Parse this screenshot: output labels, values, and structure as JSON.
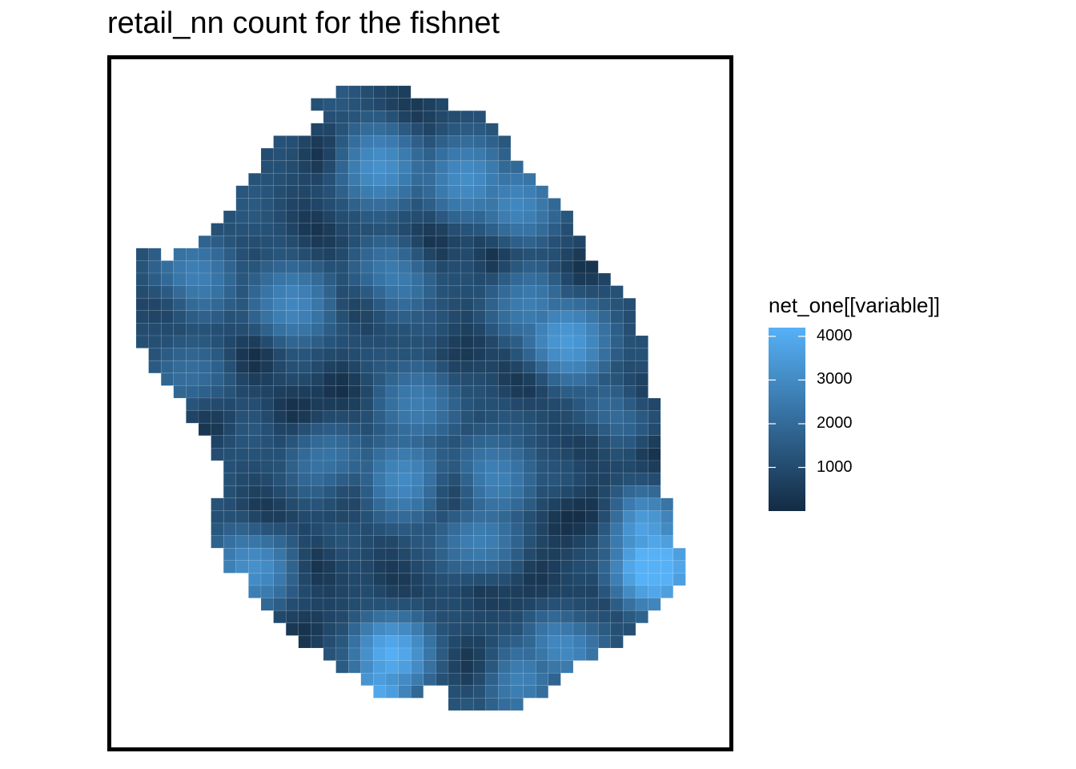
{
  "chart_data": {
    "type": "heatmap",
    "title": "retail_nn count for the fishnet",
    "legend_title": "net_one[[variable]]",
    "legend_breaks": [
      1000,
      2000,
      3000,
      4000
    ],
    "value_range": [
      0,
      4200
    ],
    "colors": {
      "low": "#132B43",
      "high": "#56B1F7",
      "frame": "#000000",
      "grid_line": "#ffffff"
    },
    "grid": {
      "cols": 44,
      "rows": 50,
      "row_spans": [
        [
          16,
          21
        ],
        [
          14,
          24
        ],
        [
          15,
          27
        ],
        [
          14,
          28
        ],
        [
          11,
          29
        ],
        [
          10,
          29
        ],
        [
          10,
          30
        ],
        [
          9,
          31
        ],
        [
          8,
          32
        ],
        [
          8,
          33
        ],
        [
          7,
          34
        ],
        [
          6,
          34
        ],
        [
          5,
          35
        ],
        [
          0,
          1,
          3,
          35
        ],
        [
          0,
          36
        ],
        [
          0,
          37
        ],
        [
          0,
          38
        ],
        [
          0,
          39
        ],
        [
          0,
          39
        ],
        [
          0,
          39
        ],
        [
          0,
          40
        ],
        [
          1,
          40
        ],
        [
          1,
          40
        ],
        [
          2,
          40
        ],
        [
          3,
          40
        ],
        [
          4,
          41
        ],
        [
          4,
          41
        ],
        [
          5,
          41
        ],
        [
          6,
          41
        ],
        [
          6,
          41
        ],
        [
          7,
          41
        ],
        [
          7,
          41
        ],
        [
          7,
          41
        ],
        [
          6,
          42
        ],
        [
          6,
          42
        ],
        [
          6,
          42
        ],
        [
          6,
          42
        ],
        [
          7,
          43
        ],
        [
          7,
          43
        ],
        [
          9,
          43
        ],
        [
          9,
          42
        ],
        [
          10,
          41
        ],
        [
          11,
          40
        ],
        [
          12,
          39
        ],
        [
          13,
          38
        ],
        [
          15,
          36
        ],
        [
          16,
          34
        ],
        [
          18,
          33
        ],
        [
          19,
          22,
          25,
          32
        ],
        [
          25,
          30
        ]
      ],
      "hotspots": [
        {
          "c": 19,
          "r": 6,
          "v": 2300,
          "s": 3.0
        },
        {
          "c": 26,
          "r": 7,
          "v": 2200,
          "s": 3.0
        },
        {
          "c": 30,
          "r": 9,
          "v": 2000,
          "s": 3.0
        },
        {
          "c": 4,
          "r": 15,
          "v": 1900,
          "s": 3.0
        },
        {
          "c": 12,
          "r": 17,
          "v": 2000,
          "s": 3.0
        },
        {
          "c": 20,
          "r": 15,
          "v": 1800,
          "s": 3.0
        },
        {
          "c": 31,
          "r": 17,
          "v": 1700,
          "s": 3.0
        },
        {
          "c": 34,
          "r": 20,
          "v": 2600,
          "s": 3.0
        },
        {
          "c": 22,
          "r": 25,
          "v": 1700,
          "s": 3.0
        },
        {
          "c": 15,
          "r": 30,
          "v": 1600,
          "s": 3.0
        },
        {
          "c": 21,
          "r": 31,
          "v": 2100,
          "s": 3.0
        },
        {
          "c": 28,
          "r": 31,
          "v": 1900,
          "s": 3.0
        },
        {
          "c": 9,
          "r": 38,
          "v": 2300,
          "s": 3.0
        },
        {
          "c": 27,
          "r": 36,
          "v": 1800,
          "s": 3.0
        },
        {
          "c": 41,
          "r": 38,
          "v": 4100,
          "s": 2.6
        },
        {
          "c": 40,
          "r": 35,
          "v": 2900,
          "s": 2.6
        },
        {
          "c": 20,
          "r": 45,
          "v": 3200,
          "s": 2.6
        },
        {
          "c": 19,
          "r": 48,
          "v": 3000,
          "s": 2.2
        },
        {
          "c": 34,
          "r": 44,
          "v": 2300,
          "s": 2.6
        },
        {
          "c": 38,
          "r": 26,
          "v": 1400,
          "s": 3.0
        },
        {
          "c": 4,
          "r": 23,
          "v": 1300,
          "s": 3.0
        },
        {
          "c": 30,
          "r": 47,
          "v": 1900,
          "s": 2.6
        }
      ],
      "coldspots": [
        {
          "c": 22,
          "r": 1
        },
        {
          "c": 14,
          "r": 5
        },
        {
          "c": 23,
          "r": 12
        },
        {
          "c": 28,
          "r": 13
        },
        {
          "c": 14,
          "r": 11
        },
        {
          "c": 2,
          "r": 17
        },
        {
          "c": 18,
          "r": 17
        },
        {
          "c": 35,
          "r": 14
        },
        {
          "c": 9,
          "r": 21
        },
        {
          "c": 26,
          "r": 21
        },
        {
          "c": 16,
          "r": 24
        },
        {
          "c": 31,
          "r": 23
        },
        {
          "c": 40,
          "r": 24
        },
        {
          "c": 5,
          "r": 26
        },
        {
          "c": 12,
          "r": 25
        },
        {
          "c": 36,
          "r": 28
        },
        {
          "c": 41,
          "r": 29
        },
        {
          "c": 16,
          "r": 32
        },
        {
          "c": 25,
          "r": 32
        },
        {
          "c": 10,
          "r": 34
        },
        {
          "c": 34,
          "r": 34
        },
        {
          "c": 37,
          "r": 34
        },
        {
          "c": 14,
          "r": 38
        },
        {
          "c": 20,
          "r": 39
        },
        {
          "c": 27,
          "r": 40
        },
        {
          "c": 32,
          "r": 39
        },
        {
          "c": 13,
          "r": 43
        },
        {
          "c": 27,
          "r": 46
        },
        {
          "c": 35,
          "r": 42
        },
        {
          "c": 8,
          "r": 44
        }
      ]
    }
  }
}
